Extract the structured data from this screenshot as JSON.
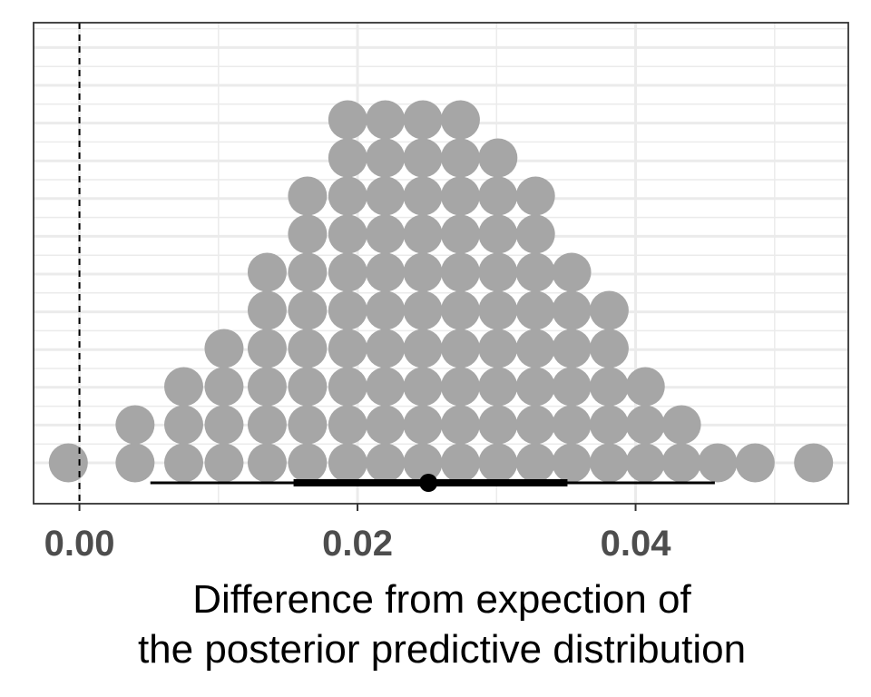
{
  "chart_data": {
    "type": "dotplot",
    "xlabel_line1": "Difference from expection of",
    "xlabel_line2": "the posterior predictive distribution",
    "xlim": [
      -0.0033,
      0.0553
    ],
    "x_ticks": [
      0.0,
      0.02,
      0.04
    ],
    "x_tick_labels": [
      "0.00",
      "0.02",
      "0.04"
    ],
    "x_minor_ticks": [
      0.01,
      0.03,
      0.05
    ],
    "y_axis_labels": "none",
    "grid": true,
    "reference_line": {
      "x": 0.0,
      "style": "dashed"
    },
    "dot_color": "#a6a6a6",
    "dot_stacks": [
      {
        "x": -0.0008,
        "count": 1
      },
      {
        "x": 0.004,
        "count": 2
      },
      {
        "x": 0.0075,
        "count": 3
      },
      {
        "x": 0.0104,
        "count": 4
      },
      {
        "x": 0.0135,
        "count": 6
      },
      {
        "x": 0.0164,
        "count": 8
      },
      {
        "x": 0.0193,
        "count": 10
      },
      {
        "x": 0.022,
        "count": 10
      },
      {
        "x": 0.0247,
        "count": 10
      },
      {
        "x": 0.0274,
        "count": 10
      },
      {
        "x": 0.0301,
        "count": 9
      },
      {
        "x": 0.0328,
        "count": 8
      },
      {
        "x": 0.0354,
        "count": 6
      },
      {
        "x": 0.0381,
        "count": 5
      },
      {
        "x": 0.0407,
        "count": 3
      },
      {
        "x": 0.0433,
        "count": 2
      },
      {
        "x": 0.0459,
        "count": 1
      },
      {
        "x": 0.0486,
        "count": 1
      },
      {
        "x": 0.0528,
        "count": 1
      }
    ],
    "point_estimate": 0.0251,
    "interval_inner": [
      0.0154,
      0.0351
    ],
    "interval_outer": [
      0.0051,
      0.0457
    ]
  },
  "colors": {
    "panel_border": "#333333",
    "grid": "#ebebeb",
    "interval": "#000000"
  }
}
